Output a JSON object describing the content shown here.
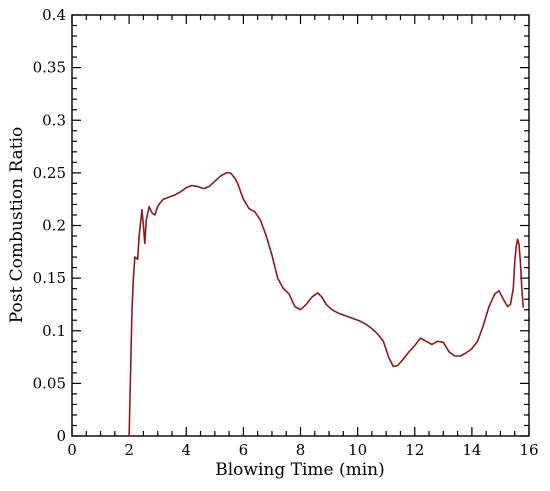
{
  "chart_data": {
    "type": "line",
    "xlabel": "Blowing Time (min)",
    "ylabel": "Post Combustion Ratio",
    "xlim": [
      0,
      16
    ],
    "ylim": [
      0,
      0.4
    ],
    "x_ticks": [
      "0",
      "2",
      "4",
      "6",
      "8",
      "10",
      "12",
      "14",
      "16"
    ],
    "y_ticks": [
      "0",
      "0.05",
      "0.1",
      "0.15",
      "0.2",
      "0.25",
      "0.3",
      "0.35",
      "0.4"
    ],
    "grid": false,
    "line_color": "#8b1a1a",
    "series": [
      {
        "x": [
          2.0,
          2.05,
          2.1,
          2.15,
          2.2,
          2.3,
          2.35,
          2.45,
          2.5,
          2.55,
          2.6,
          2.7,
          2.8,
          2.9,
          3.0,
          3.1,
          3.2,
          3.4,
          3.6,
          3.8,
          4.0,
          4.2,
          4.4,
          4.6,
          4.8,
          5.0,
          5.2,
          5.4,
          5.55,
          5.7,
          5.8,
          6.0,
          6.2,
          6.4,
          6.6,
          6.8,
          7.0,
          7.2,
          7.4,
          7.6,
          7.8,
          8.0,
          8.2,
          8.4,
          8.6,
          8.75,
          8.9,
          9.1,
          9.3,
          9.5,
          9.7,
          9.9,
          10.1,
          10.3,
          10.5,
          10.7,
          10.9,
          11.1,
          11.25,
          11.4,
          11.6,
          11.8,
          12.0,
          12.2,
          12.4,
          12.6,
          12.8,
          13.0,
          13.2,
          13.4,
          13.6,
          13.8,
          14.0,
          14.2,
          14.4,
          14.6,
          14.8,
          14.95,
          15.1,
          15.25,
          15.35,
          15.45,
          15.5,
          15.55,
          15.6,
          15.65,
          15.7,
          15.75,
          15.8
        ],
        "y": [
          0.0,
          0.06,
          0.12,
          0.15,
          0.17,
          0.168,
          0.19,
          0.215,
          0.2,
          0.183,
          0.205,
          0.218,
          0.212,
          0.21,
          0.218,
          0.222,
          0.225,
          0.227,
          0.229,
          0.232,
          0.236,
          0.238,
          0.237,
          0.235,
          0.237,
          0.242,
          0.247,
          0.25,
          0.25,
          0.245,
          0.24,
          0.225,
          0.216,
          0.213,
          0.205,
          0.19,
          0.172,
          0.15,
          0.14,
          0.135,
          0.123,
          0.12,
          0.125,
          0.132,
          0.136,
          0.132,
          0.125,
          0.12,
          0.117,
          0.115,
          0.113,
          0.111,
          0.109,
          0.106,
          0.102,
          0.097,
          0.09,
          0.074,
          0.066,
          0.067,
          0.073,
          0.08,
          0.086,
          0.093,
          0.09,
          0.087,
          0.09,
          0.089,
          0.08,
          0.076,
          0.076,
          0.079,
          0.083,
          0.09,
          0.105,
          0.123,
          0.135,
          0.138,
          0.13,
          0.123,
          0.125,
          0.14,
          0.165,
          0.18,
          0.187,
          0.182,
          0.165,
          0.14,
          0.122
        ]
      }
    ]
  }
}
